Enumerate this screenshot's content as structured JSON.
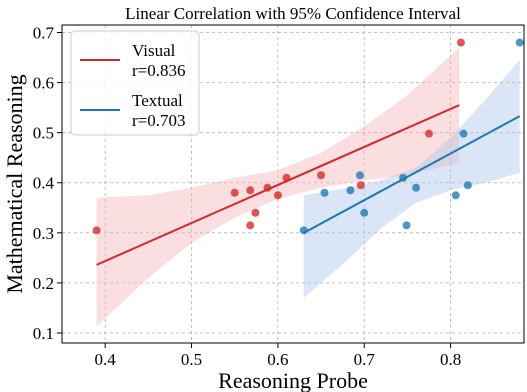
{
  "chart_data": {
    "type": "scatter",
    "title": "Linear Correlation with 95% Confidence Interval",
    "xlabel": "Reasoning Probe",
    "ylabel": "Mathematical Reasoning",
    "xlim": [
      0.35,
      0.885
    ],
    "ylim": [
      0.08,
      0.715
    ],
    "xticks": [
      0.4,
      0.5,
      0.6,
      0.7,
      0.8
    ],
    "xtick_labels": [
      "0.4",
      "0.5",
      "0.6",
      "0.7",
      "0.8"
    ],
    "yticks": [
      0.1,
      0.2,
      0.3,
      0.4,
      0.5,
      0.6,
      0.7
    ],
    "ytick_labels": [
      "0.1",
      "0.2",
      "0.3",
      "0.4",
      "0.5",
      "0.6",
      "0.7"
    ],
    "grid": true,
    "legend_position": "top-left",
    "series": [
      {
        "name": "Visual",
        "stat_label": "r=0.836",
        "color": "#d62728",
        "band_color": "#f7b6b9",
        "points": [
          {
            "x": 0.39,
            "y": 0.305
          },
          {
            "x": 0.55,
            "y": 0.38
          },
          {
            "x": 0.568,
            "y": 0.385
          },
          {
            "x": 0.568,
            "y": 0.315
          },
          {
            "x": 0.574,
            "y": 0.34
          },
          {
            "x": 0.588,
            "y": 0.39
          },
          {
            "x": 0.6,
            "y": 0.375
          },
          {
            "x": 0.61,
            "y": 0.41
          },
          {
            "x": 0.65,
            "y": 0.415
          },
          {
            "x": 0.696,
            "y": 0.395
          },
          {
            "x": 0.775,
            "y": 0.498
          },
          {
            "x": 0.812,
            "y": 0.68
          }
        ],
        "fit": {
          "x": [
            0.39,
            0.81
          ],
          "y": [
            0.236,
            0.555
          ]
        },
        "ci": [
          {
            "x": 0.39,
            "lo": 0.113,
            "hi": 0.37
          },
          {
            "x": 0.45,
            "lo": 0.21,
            "hi": 0.375
          },
          {
            "x": 0.5,
            "lo": 0.28,
            "hi": 0.39
          },
          {
            "x": 0.55,
            "lo": 0.33,
            "hi": 0.41
          },
          {
            "x": 0.6,
            "lo": 0.368,
            "hi": 0.425
          },
          {
            "x": 0.65,
            "lo": 0.39,
            "hi": 0.46
          },
          {
            "x": 0.7,
            "lo": 0.405,
            "hi": 0.512
          },
          {
            "x": 0.75,
            "lo": 0.415,
            "hi": 0.575
          },
          {
            "x": 0.81,
            "lo": 0.44,
            "hi": 0.67
          }
        ]
      },
      {
        "name": "Textual",
        "stat_label": "r=0.703",
        "color": "#1f77b4",
        "band_color": "#aec7e8",
        "points": [
          {
            "x": 0.63,
            "y": 0.305
          },
          {
            "x": 0.654,
            "y": 0.38
          },
          {
            "x": 0.684,
            "y": 0.385
          },
          {
            "x": 0.695,
            "y": 0.415
          },
          {
            "x": 0.7,
            "y": 0.34
          },
          {
            "x": 0.745,
            "y": 0.41
          },
          {
            "x": 0.749,
            "y": 0.315
          },
          {
            "x": 0.76,
            "y": 0.39
          },
          {
            "x": 0.806,
            "y": 0.375
          },
          {
            "x": 0.815,
            "y": 0.498
          },
          {
            "x": 0.82,
            "y": 0.395
          },
          {
            "x": 0.88,
            "y": 0.68
          }
        ],
        "fit": {
          "x": [
            0.63,
            0.88
          ],
          "y": [
            0.3,
            0.533
          ]
        },
        "ci": [
          {
            "x": 0.63,
            "lo": 0.17,
            "hi": 0.375
          },
          {
            "x": 0.68,
            "lo": 0.245,
            "hi": 0.39
          },
          {
            "x": 0.72,
            "lo": 0.31,
            "hi": 0.405
          },
          {
            "x": 0.76,
            "lo": 0.36,
            "hi": 0.43
          },
          {
            "x": 0.8,
            "lo": 0.385,
            "hi": 0.49
          },
          {
            "x": 0.84,
            "lo": 0.4,
            "hi": 0.565
          },
          {
            "x": 0.88,
            "lo": 0.42,
            "hi": 0.645
          }
        ]
      }
    ]
  }
}
